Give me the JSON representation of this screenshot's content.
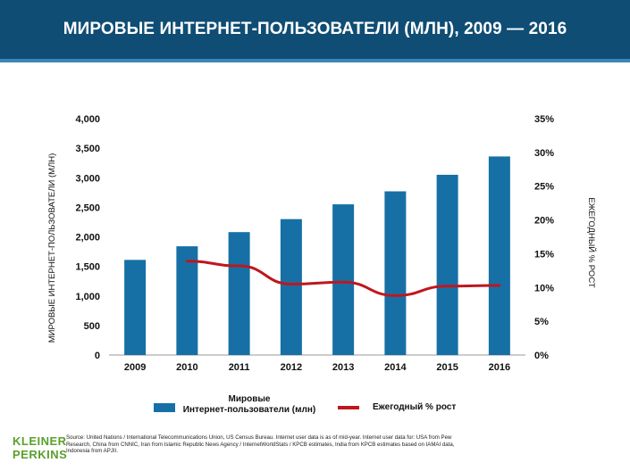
{
  "header": {
    "title": "МИРОВЫЕ ИНТЕРНЕТ-ПОЛЬЗОВАТЕЛИ (МЛН), 2009 — 2016"
  },
  "colors": {
    "header_bg": "#0f4d74",
    "bar": "#1670a6",
    "line": "#c0161e"
  },
  "chart_data": {
    "type": "bar",
    "categories": [
      "2009",
      "2010",
      "2011",
      "2012",
      "2013",
      "2014",
      "2015",
      "2016"
    ],
    "series": [
      {
        "name": "Мировые Интернет-пользователи (млн)",
        "type": "bar",
        "axis": "left",
        "values": [
          1610,
          1840,
          2080,
          2300,
          2550,
          2770,
          3050,
          3360
        ]
      },
      {
        "name": "Ежегодный % рост",
        "type": "line",
        "axis": "right",
        "values": [
          null,
          13.9,
          13.2,
          10.5,
          10.8,
          8.8,
          10.2,
          10.3
        ]
      }
    ],
    "ylabel": "МИРОВЫЕ ИНТЕРНЕТ-ПОЛЬЗОВАТЕЛИ (МЛН)",
    "y2label": "ЕЖЕГОДНЫЙ % РОСТ",
    "ylim": [
      0,
      4000
    ],
    "y2lim": [
      0,
      35
    ],
    "yticks": [
      "0",
      "500",
      "1,000",
      "1,500",
      "2,000",
      "2,500",
      "3,000",
      "3,500",
      "4,000"
    ],
    "y2ticks": [
      "0%",
      "5%",
      "10%",
      "15%",
      "20%",
      "25%",
      "30%",
      "35%"
    ],
    "legend": {
      "placement": "bottom",
      "bar_label_line1": "Мировые",
      "bar_label_line2": "Интернет-пользователи (млн)",
      "line_label": "Ежегодный % рост"
    },
    "grid": false
  },
  "footer": {
    "source": "Source: United Nations / International Telecommunications Union, US Census Bureau. Internet user data is as of mid-year. Internet user data for: USA from Pew Research, China from CNNIC, Iran from Islamic Republic News Agency / InternetWorldStats / KPCB estimates, India from KPCB estimates based on IAMAI data, Indonesia from APJII.",
    "logo_line1": "KLEINER",
    "logo_line2": "PERKINS"
  }
}
